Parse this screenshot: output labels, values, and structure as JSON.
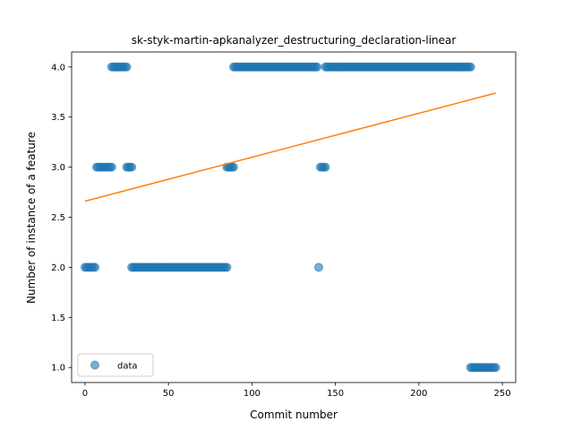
{
  "chart_data": {
    "type": "scatter",
    "title": "sk-styk-martin-apkanalyzer_destructuring_declaration-linear",
    "xlabel": "Commit number",
    "ylabel": "Number of instance of a feature",
    "xlim": [
      -8,
      258
    ],
    "ylim": [
      0.85,
      4.15
    ],
    "xticks": [
      0,
      50,
      100,
      150,
      200,
      250
    ],
    "yticks": [
      1.0,
      1.5,
      2.0,
      2.5,
      3.0,
      3.5,
      4.0
    ],
    "xtick_labels": [
      "0",
      "50",
      "100",
      "150",
      "200",
      "250"
    ],
    "ytick_labels": [
      "1.0",
      "1.5",
      "2.0",
      "2.5",
      "3.0",
      "3.5",
      "4.0"
    ],
    "grid": false,
    "legend": {
      "position": "lower-left",
      "entries": [
        "data"
      ]
    },
    "colors": {
      "data": "#1f77b4",
      "fit": "#ff7f0e"
    },
    "series": [
      {
        "name": "data",
        "type": "scatter",
        "segments": [
          {
            "x_start": 0,
            "x_end": 6,
            "y": 2
          },
          {
            "x_start": 7,
            "x_end": 16,
            "y": 3
          },
          {
            "x_start": 16,
            "x_end": 25,
            "y": 4
          },
          {
            "x_start": 25,
            "x_end": 28,
            "y": 3
          },
          {
            "x_start": 28,
            "x_end": 85,
            "y": 2
          },
          {
            "x_start": 85,
            "x_end": 89,
            "y": 3
          },
          {
            "x_start": 89,
            "x_end": 139,
            "y": 4
          },
          {
            "x_start": 140,
            "x_end": 140,
            "y": 2
          },
          {
            "x_start": 141,
            "x_end": 144,
            "y": 3
          },
          {
            "x_start": 144,
            "x_end": 231,
            "y": 4
          },
          {
            "x_start": 231,
            "x_end": 246,
            "y": 1
          }
        ]
      },
      {
        "type": "line",
        "x": [
          0,
          246
        ],
        "y": [
          2.66,
          3.74
        ]
      }
    ]
  }
}
